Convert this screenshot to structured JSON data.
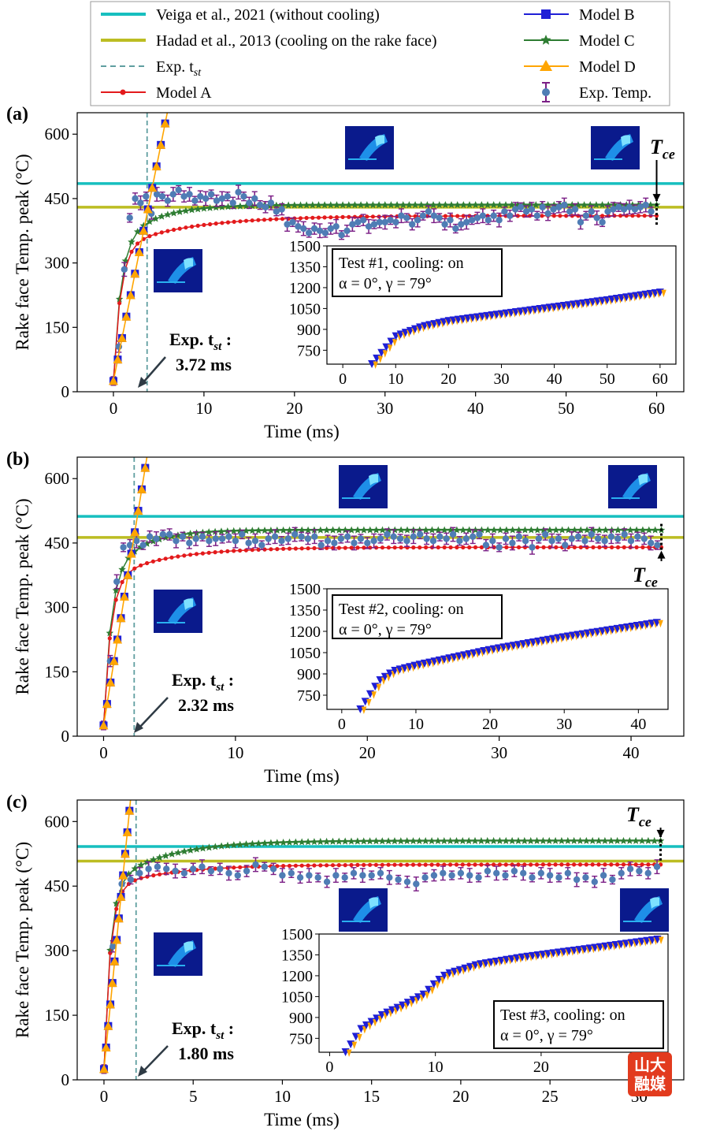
{
  "legend": {
    "left": [
      {
        "label": "Veiga et al., 2021 (without cooling)",
        "color": "#17bfbf",
        "style": "line"
      },
      {
        "label": "Hadad et al., 2013 (cooling on the rake face)",
        "color": "#bcbd22",
        "style": "line"
      },
      {
        "label": "Exp. t",
        "sub": "st",
        "color": "#5f9ea0",
        "style": "dashed"
      },
      {
        "label": "Model A",
        "color": "#e31a1c",
        "style": "dot-line"
      }
    ],
    "right": [
      {
        "label": "Model B",
        "color": "#1f1fd6",
        "style": "square"
      },
      {
        "label": "Model C",
        "color": "#2e7d32",
        "style": "star"
      },
      {
        "label": "Model D",
        "color": "#ffa500",
        "style": "triangle"
      },
      {
        "label": "Exp. Temp.",
        "color": "#4f7db5",
        "style": "errorbar"
      }
    ]
  },
  "colors": {
    "veiga": "#17bfbf",
    "hadad": "#bcbd22",
    "expline": "#5f9ea0",
    "modelA": "#e31a1c",
    "modelB": "#1f1fd6",
    "modelC": "#2e7d32",
    "modelD": "#ffa500",
    "exp": "#4f7db5",
    "errbar": "#7b1f86",
    "thermal": "#0a1a8c"
  },
  "common": {
    "ylabel": "Rake face Temp. peak (°C)",
    "xlabel": "Time (ms)",
    "tce_main": "T",
    "tce_sub": "ce",
    "exp_label_main": "Exp. t",
    "exp_label_sub": "st",
    "exp_label_colon": ":"
  },
  "watermark": {
    "line1": "山大",
    "line2": "融媒"
  },
  "chart_data": [
    {
      "panel": "(a)",
      "type": "line",
      "xlim": [
        -4,
        63
      ],
      "ylim": [
        0,
        650
      ],
      "xticks": [
        0,
        10,
        20,
        30,
        40,
        50,
        60
      ],
      "yticks": [
        0,
        150,
        300,
        450,
        600
      ],
      "veiga": 485,
      "hadad": 430,
      "t_st": 3.72,
      "t_st_label": "3.72 ms",
      "t_end": 60,
      "modelA": {
        "T0": 25,
        "A": 310,
        "tau1": 0.8,
        "B": 75,
        "tau2": 8
      },
      "modelC": {
        "T0": 25,
        "A": 310,
        "tau1": 0.8,
        "B": 100,
        "tau2": 4
      },
      "modelBD": {
        "T0": 25,
        "rate": 105
      },
      "exp": {
        "x": [
          0,
          0.6,
          1.2,
          1.8,
          2.4,
          3.0,
          3.6,
          4.2,
          4.8,
          5.4,
          6.0,
          6.6,
          7.2,
          7.8,
          8.4,
          9.0,
          9.6,
          10.2,
          10.8,
          11.4,
          12.0,
          12.6,
          13.2,
          13.8,
          14.4,
          15.0,
          15.6,
          16.2,
          16.8,
          17.4,
          18.0,
          18.6,
          19.2,
          19.8,
          20.4,
          21.0,
          21.6,
          22.2,
          22.8,
          23.4,
          24.0,
          24.6,
          25.2,
          25.8,
          26.4,
          27.0,
          27.6,
          28.2,
          28.8,
          29.4,
          30.0,
          30.6,
          31.2,
          31.8,
          32.4,
          33.0,
          33.6,
          34.2,
          34.8,
          35.4,
          36.0,
          36.6,
          37.2,
          37.8,
          38.4,
          39.0,
          39.6,
          40.2,
          40.8,
          41.4,
          42.0,
          42.6,
          43.2,
          43.8,
          44.4,
          45.0,
          45.6,
          46.2,
          46.8,
          47.4,
          48.0,
          48.6,
          49.2,
          49.8,
          50.4,
          51.0,
          51.6,
          52.2,
          52.8,
          53.4,
          54.0,
          54.6,
          55.2,
          55.8,
          56.4,
          57.0,
          57.6,
          58.2,
          58.8,
          59.4
        ],
        "y": [
          25,
          105,
          285,
          405,
          450,
          440,
          455,
          415,
          460,
          455,
          445,
          460,
          470,
          455,
          460,
          445,
          455,
          450,
          460,
          445,
          450,
          455,
          440,
          465,
          455,
          440,
          450,
          435,
          430,
          440,
          420,
          425,
          390,
          395,
          385,
          380,
          370,
          380,
          375,
          370,
          380,
          385,
          365,
          375,
          390,
          395,
          400,
          385,
          390,
          395,
          395,
          400,
          395,
          410,
          405,
          390,
          400,
          410,
          420,
          410,
          405,
          390,
          400,
          380,
          390,
          395,
          400,
          405,
          410,
          400,
          410,
          400,
          420,
          410,
          425,
          430,
          420,
          425,
          410,
          430,
          415,
          425,
          430,
          435,
          420,
          425,
          395,
          410,
          420,
          405,
          395,
          420,
          425,
          430,
          425,
          430,
          425,
          430,
          435,
          420
        ]
      },
      "box": {
        "line1": "Test #1, cooling: on",
        "line2": "α = 0°, γ = 79°"
      },
      "inset": {
        "xlim": [
          -3,
          63
        ],
        "ylim": [
          650,
          1500
        ],
        "xticks": [
          0,
          10,
          20,
          30,
          40,
          50,
          60
        ],
        "yticks": [
          750,
          900,
          1050,
          1200,
          1350,
          1500
        ],
        "x_end": 60,
        "points": [
          [
            5.5,
            650
          ],
          [
            10,
            850
          ],
          [
            15,
            920
          ],
          [
            20,
            960
          ],
          [
            30,
            1010
          ],
          [
            40,
            1060
          ],
          [
            50,
            1110
          ],
          [
            60,
            1165
          ]
        ]
      }
    },
    {
      "panel": "(b)",
      "type": "line",
      "xlim": [
        -2,
        44
      ],
      "ylim": [
        0,
        650
      ],
      "xticks": [
        0,
        10,
        20,
        30,
        40
      ],
      "yticks": [
        0,
        150,
        300,
        450,
        600
      ],
      "veiga": 512,
      "hadad": 463,
      "t_st": 2.32,
      "t_st_label": "2.32 ms",
      "t_end": 42.3,
      "modelA": {
        "T0": 25,
        "A": 340,
        "tau1": 0.55,
        "B": 75,
        "tau2": 4.5
      },
      "modelC": {
        "T0": 25,
        "A": 340,
        "tau1": 0.55,
        "B": 115,
        "tau2": 2.5
      },
      "modelBD": {
        "T0": 25,
        "rate": 190
      },
      "exp": {
        "x": [
          0,
          0.5,
          1.0,
          1.5,
          2.0,
          2.5,
          3.0,
          3.5,
          4.0,
          4.5,
          5.0,
          5.5,
          6.0,
          6.5,
          7.0,
          7.5,
          8.0,
          8.5,
          9.0,
          9.5,
          10.0,
          10.5,
          11.0,
          11.5,
          12.0,
          12.5,
          13.0,
          13.5,
          14.0,
          14.5,
          15.0,
          15.5,
          16.0,
          16.5,
          17.0,
          17.5,
          18.0,
          18.5,
          19.0,
          19.5,
          20.0,
          20.5,
          21.0,
          21.5,
          22.0,
          22.5,
          23.0,
          23.5,
          24.0,
          24.5,
          25.0,
          25.5,
          26.0,
          26.5,
          27.0,
          27.5,
          28.0,
          28.5,
          29.0,
          29.5,
          30.0,
          30.5,
          31.0,
          31.5,
          32.0,
          32.5,
          33.0,
          33.5,
          34.0,
          34.5,
          35.0,
          35.5,
          36.0,
          36.5,
          37.0,
          37.5,
          38.0,
          38.5,
          39.0,
          39.5,
          40.0,
          40.5,
          41.0,
          41.5,
          42.0
        ],
        "y": [
          25,
          175,
          360,
          440,
          445,
          455,
          445,
          465,
          460,
          470,
          470,
          455,
          465,
          450,
          460,
          465,
          455,
          460,
          460,
          465,
          455,
          470,
          450,
          455,
          445,
          460,
          465,
          455,
          460,
          470,
          465,
          460,
          465,
          445,
          455,
          450,
          460,
          465,
          450,
          460,
          450,
          455,
          460,
          470,
          465,
          460,
          455,
          465,
          470,
          460,
          455,
          465,
          460,
          470,
          455,
          460,
          465,
          470,
          445,
          455,
          440,
          460,
          450,
          465,
          455,
          440,
          460,
          470,
          455,
          460,
          445,
          460,
          465,
          455,
          470,
          460,
          455,
          465,
          460,
          470,
          455,
          465,
          460,
          450,
          445
        ]
      },
      "box": {
        "line1": "Test #2, cooling: on",
        "line2": "α = 0°, γ = 79°"
      },
      "inset": {
        "xlim": [
          -2,
          44
        ],
        "ylim": [
          650,
          1500
        ],
        "xticks": [
          0,
          10,
          20,
          30,
          40
        ],
        "yticks": [
          750,
          900,
          1050,
          1200,
          1350,
          1500
        ],
        "x_end": 42.5,
        "points": [
          [
            2.5,
            650
          ],
          [
            5,
            850
          ],
          [
            7,
            920
          ],
          [
            10,
            960
          ],
          [
            20,
            1070
          ],
          [
            30,
            1160
          ],
          [
            42.5,
            1260
          ]
        ]
      }
    },
    {
      "panel": "(c)",
      "type": "line",
      "xlim": [
        -1.5,
        32.5
      ],
      "ylim": [
        0,
        650
      ],
      "xticks": [
        0,
        5,
        10,
        15,
        20,
        25,
        30
      ],
      "yticks": [
        0,
        150,
        300,
        450,
        600
      ],
      "veiga": 542,
      "hadad": 508,
      "t_st": 1.8,
      "t_st_label": "1.80 ms",
      "t_end": 31.2,
      "modelA": {
        "T0": 25,
        "A": 420,
        "tau1": 0.35,
        "B": 55,
        "tau2": 3.5
      },
      "modelC": {
        "T0": 25,
        "A": 420,
        "tau1": 0.35,
        "B": 110,
        "tau2": 3
      },
      "modelBD": {
        "T0": 25,
        "rate": 420
      },
      "exp": {
        "x": [
          0,
          0.5,
          1.0,
          1.5,
          2.0,
          2.5,
          3.0,
          3.5,
          4.0,
          4.5,
          5.0,
          5.5,
          6.0,
          6.5,
          7.0,
          7.5,
          8.0,
          8.5,
          9.0,
          9.5,
          10.0,
          10.5,
          11.0,
          11.5,
          12.0,
          12.5,
          13.0,
          13.5,
          14.0,
          14.5,
          15.0,
          15.5,
          16.0,
          16.5,
          17.0,
          17.5,
          18.0,
          18.5,
          19.0,
          19.5,
          20.0,
          20.5,
          21.0,
          21.5,
          22.0,
          22.5,
          23.0,
          23.5,
          24.0,
          24.5,
          25.0,
          25.5,
          26.0,
          26.5,
          27.0,
          27.5,
          28.0,
          28.5,
          29.0,
          29.5,
          30.0,
          30.5,
          31.0
        ],
        "y": [
          25,
          310,
          455,
          465,
          480,
          490,
          495,
          490,
          485,
          480,
          490,
          495,
          485,
          490,
          480,
          475,
          485,
          500,
          495,
          490,
          475,
          480,
          470,
          475,
          470,
          460,
          475,
          470,
          480,
          475,
          475,
          480,
          470,
          465,
          460,
          455,
          470,
          475,
          480,
          475,
          480,
          475,
          470,
          485,
          480,
          475,
          485,
          480,
          470,
          480,
          475,
          470,
          480,
          465,
          470,
          460,
          475,
          465,
          480,
          490,
          485,
          480,
          495
        ]
      },
      "box": {
        "line1": "Test #3, cooling: on",
        "line2": "α = 0°, γ = 79°"
      },
      "inset": {
        "xlim": [
          -1,
          32
        ],
        "ylim": [
          650,
          1500
        ],
        "xticks": [
          0,
          10,
          20,
          30
        ],
        "yticks": [
          750,
          900,
          1050,
          1200,
          1350,
          1500
        ],
        "x_end": 31,
        "points": [
          [
            1.5,
            650
          ],
          [
            3,
            820
          ],
          [
            5,
            920
          ],
          [
            7,
            990
          ],
          [
            9,
            1070
          ],
          [
            10,
            1150
          ],
          [
            11,
            1210
          ],
          [
            14,
            1280
          ],
          [
            18,
            1330
          ],
          [
            22,
            1370
          ],
          [
            26,
            1410
          ],
          [
            31,
            1460
          ]
        ]
      }
    }
  ]
}
